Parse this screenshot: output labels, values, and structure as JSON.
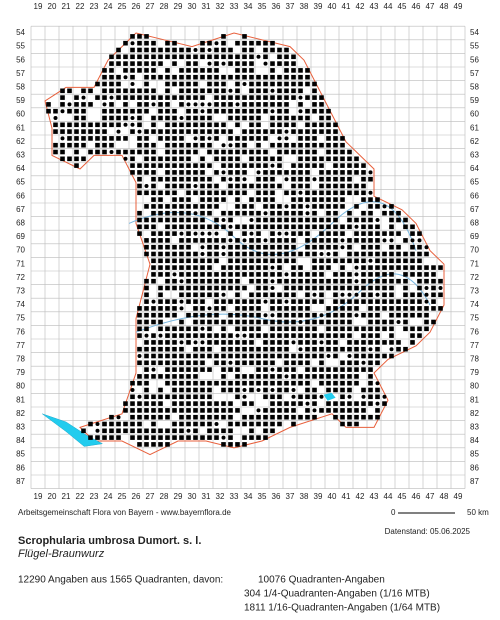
{
  "map": {
    "x_labels": [
      19,
      20,
      21,
      22,
      23,
      24,
      25,
      26,
      27,
      28,
      29,
      30,
      31,
      32,
      33,
      34,
      35,
      36,
      37,
      38,
      39,
      40,
      41,
      42,
      43,
      44,
      45,
      46,
      47,
      48,
      49
    ],
    "y_labels": [
      54,
      55,
      56,
      57,
      58,
      59,
      60,
      61,
      62,
      63,
      64,
      65,
      66,
      67,
      68,
      69,
      70,
      71,
      72,
      73,
      74,
      75,
      76,
      77,
      78,
      79,
      80,
      81,
      82,
      83,
      84,
      85,
      86,
      87
    ],
    "credit": "Arbeitsgemeinschaft Flora von Bayern - www.bayernflora.de",
    "scale_start": "0",
    "scale_end": "50 km",
    "date": "Datenstand: 05.06.2025",
    "species": "Scrophularia umbrosa Dumort. s. l.",
    "common_name": "Flügel-Braunwurz",
    "summary": "12290 Angaben aus 1565 Quadranten, davon:",
    "counts": [
      "10076 Quadranten-Angaben",
      "304 1/4-Quadranten-Angaben (1/16 MTB)",
      "1811 1/16-Quadranten-Angaben (1/64 MTB)"
    ]
  }
}
